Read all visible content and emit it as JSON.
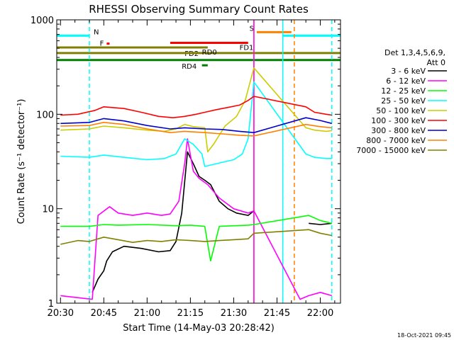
{
  "chart_data": {
    "type": "line",
    "title": "RHESSI Observing Summary Count Rates",
    "xlabel": "Start Time (14-May-03 20:28:42)",
    "ylabel": "Count Rate (s⁻¹ detector⁻¹)",
    "yscale": "log",
    "ylim": [
      1,
      1000
    ],
    "xlim_minutes": [
      "20:28:42",
      "22:07:00"
    ],
    "x_ticks": [
      "20:30",
      "20:45",
      "21:00",
      "21:15",
      "21:30",
      "21:45",
      "22:00"
    ],
    "y_ticks": [
      "1",
      "10",
      "100",
      "1000"
    ],
    "grid": false,
    "legend_position": "right",
    "legend_header": [
      "Det 1,3,4,5,6,9,",
      "Att 0"
    ],
    "footer_timestamp": "18-Oct-2021 09:45",
    "series": [
      {
        "name": "3 - 6 keV",
        "color": "#000000",
        "x": [
          "20:41",
          "20:43",
          "20:45",
          "20:46",
          "20:48",
          "20:52",
          "20:58",
          "21:04",
          "21:08",
          "21:10",
          "21:12",
          "21:14",
          "21:16",
          "21:18",
          "21:20",
          "21:22",
          "21:25",
          "21:28",
          "21:31",
          "21:35",
          "21:37",
          "21:54",
          "21:56",
          "22:00",
          "22:04"
        ],
        "y": [
          1.3,
          1.8,
          2.2,
          2.8,
          3.5,
          4.0,
          3.8,
          3.5,
          3.6,
          4.5,
          9,
          40,
          30,
          22,
          20,
          18,
          12,
          10,
          9,
          8.5,
          9.5,
          null,
          7,
          6.8,
          7
        ]
      },
      {
        "name": "6 - 12 keV",
        "color": "#ff00ff",
        "x": [
          "20:30",
          "20:41",
          "20:43",
          "20:47",
          "20:50",
          "20:55",
          "21:00",
          "21:05",
          "21:08",
          "21:11",
          "21:13",
          "21:14",
          "21:16",
          "21:18",
          "21:21",
          "21:25",
          "21:30",
          "21:35",
          "21:37",
          "21:53",
          "21:56",
          "22:00",
          "22:04"
        ],
        "y": [
          1.2,
          1.1,
          8.5,
          10.5,
          9,
          8.5,
          9,
          8.5,
          8.8,
          12,
          30,
          55,
          25,
          21,
          18,
          13,
          10,
          9,
          9.5,
          1.1,
          1.2,
          1.3,
          1.2
        ]
      },
      {
        "name": "12 - 25 keV",
        "color": "#00ff00",
        "x": [
          "20:30",
          "20:40",
          "20:45",
          "20:50",
          "21:00",
          "21:10",
          "21:15",
          "21:20",
          "21:22",
          "21:25",
          "21:30",
          "21:35",
          "21:37",
          "21:56",
          "22:00",
          "22:04"
        ],
        "y": [
          6.5,
          6.5,
          6.8,
          6.7,
          6.8,
          6.6,
          6.7,
          6.5,
          2.8,
          6.5,
          6.6,
          6.7,
          6.8,
          8.5,
          7.5,
          7
        ]
      },
      {
        "name": "25 - 50 keV",
        "color": "#00ffff",
        "x": [
          "20:30",
          "20:40",
          "20:45",
          "20:52",
          "21:00",
          "21:06",
          "21:10",
          "21:13",
          "21:16",
          "21:19",
          "21:20",
          "21:24",
          "21:30",
          "21:33",
          "21:35",
          "21:37",
          "21:55",
          "21:58",
          "22:02",
          "22:04"
        ],
        "y": [
          36,
          35,
          37,
          35,
          33,
          34,
          38,
          55,
          48,
          38,
          28,
          30,
          33,
          38,
          55,
          220,
          38,
          35,
          34,
          34
        ]
      },
      {
        "name": "50 - 100 keV",
        "color": "#cccc00",
        "x": [
          "20:30",
          "20:40",
          "20:45",
          "20:52",
          "21:00",
          "21:06",
          "21:10",
          "21:13",
          "21:16",
          "21:20",
          "21:21",
          "21:23",
          "21:27",
          "21:31",
          "21:34",
          "21:37",
          "21:55",
          "21:58",
          "22:02",
          "22:04"
        ],
        "y": [
          68,
          70,
          75,
          72,
          68,
          66,
          70,
          78,
          74,
          72,
          40,
          48,
          75,
          95,
          140,
          310,
          72,
          68,
          66,
          67
        ]
      },
      {
        "name": "100 - 300 keV",
        "color": "#ff0000",
        "x": [
          "20:30",
          "20:36",
          "20:42",
          "20:45",
          "20:52",
          "20:58",
          "21:04",
          "21:09",
          "21:13",
          "21:17",
          "21:20",
          "21:24",
          "21:28",
          "21:32",
          "21:35",
          "21:37",
          "21:55",
          "21:58",
          "22:02",
          "22:04"
        ],
        "y": [
          98,
          100,
          110,
          120,
          115,
          105,
          95,
          92,
          95,
          100,
          105,
          112,
          118,
          125,
          140,
          155,
          120,
          105,
          100,
          98
        ]
      },
      {
        "name": "300 - 800 keV",
        "color": "#0000cc",
        "x": [
          "20:30",
          "20:40",
          "20:45",
          "20:52",
          "21:00",
          "21:08",
          "21:13",
          "21:20",
          "21:26",
          "21:32",
          "21:37",
          "21:55",
          "22:00",
          "22:04"
        ],
        "y": [
          80,
          82,
          90,
          85,
          76,
          70,
          72,
          70,
          69,
          66,
          64,
          92,
          86,
          80
        ]
      },
      {
        "name": "800 - 7000 keV",
        "color": "#ff8000",
        "x": [
          "20:30",
          "20:40",
          "20:45",
          "20:52",
          "21:00",
          "21:08",
          "21:13",
          "21:20",
          "21:26",
          "21:32",
          "21:37",
          "21:55",
          "22:00",
          "22:04"
        ],
        "y": [
          75,
          76,
          82,
          78,
          70,
          64,
          66,
          64,
          62,
          60,
          59,
          78,
          74,
          72
        ]
      },
      {
        "name": "7000 - 15000 keV",
        "color": "#808000",
        "x": [
          "20:30",
          "20:36",
          "20:40",
          "20:45",
          "20:50",
          "20:55",
          "21:00",
          "21:05",
          "21:10",
          "21:15",
          "21:20",
          "21:25",
          "21:30",
          "21:35",
          "21:37",
          "21:56",
          "22:00",
          "22:04"
        ],
        "y": [
          4.2,
          4.6,
          4.5,
          5.0,
          4.7,
          4.4,
          4.6,
          4.5,
          4.7,
          4.6,
          4.5,
          4.6,
          4.7,
          4.8,
          5.5,
          6.0,
          5.5,
          5.2
        ]
      }
    ],
    "flag_bars": [
      {
        "label": "N",
        "color": "#00ffff",
        "level": 680,
        "segments": [
          [
            "20:28:42",
            "20:40"
          ],
          [
            "21:47",
            "22:07"
          ]
        ]
      },
      {
        "label": "S",
        "color": "#ff8000",
        "level": 740,
        "segments": [
          [
            "21:38",
            "21:50"
          ]
        ]
      },
      {
        "label": "F",
        "color": "#ff0000",
        "level": 560,
        "segments": [
          [
            "20:46",
            "20:47"
          ]
        ]
      },
      {
        "label": "FD1",
        "color": "#ff0000",
        "level": 570,
        "segments": [
          [
            "21:08",
            "21:35"
          ]
        ]
      },
      {
        "label": "FD2",
        "color": "#808000",
        "level": 510,
        "segments": [
          [
            "20:28:42",
            "21:21"
          ]
        ]
      },
      {
        "label": "RD0",
        "color": "#808000",
        "level": 445,
        "segments": [
          [
            "20:28:42",
            "22:07"
          ]
        ]
      },
      {
        "label": "RD4",
        "color": "#008000",
        "level": 375,
        "segments": [
          [
            "20:28:42",
            "22:07"
          ]
        ]
      },
      {
        "label": "",
        "color": "#008000",
        "level": 330,
        "segments": [
          [
            "21:19",
            "21:21"
          ]
        ]
      }
    ],
    "vertical_markers": [
      {
        "time": "20:40",
        "color": "#00ffff",
        "style": "dashed"
      },
      {
        "time": "21:37",
        "color": "#ff8000",
        "style": "solid"
      },
      {
        "time": "21:37",
        "color": "#ff00ff",
        "style": "solid"
      },
      {
        "time": "21:47",
        "color": "#00ffff",
        "style": "solid"
      },
      {
        "time": "21:51",
        "color": "#ff8000",
        "style": "dashed"
      },
      {
        "time": "22:04",
        "color": "#00ffff",
        "style": "dashed"
      }
    ]
  }
}
